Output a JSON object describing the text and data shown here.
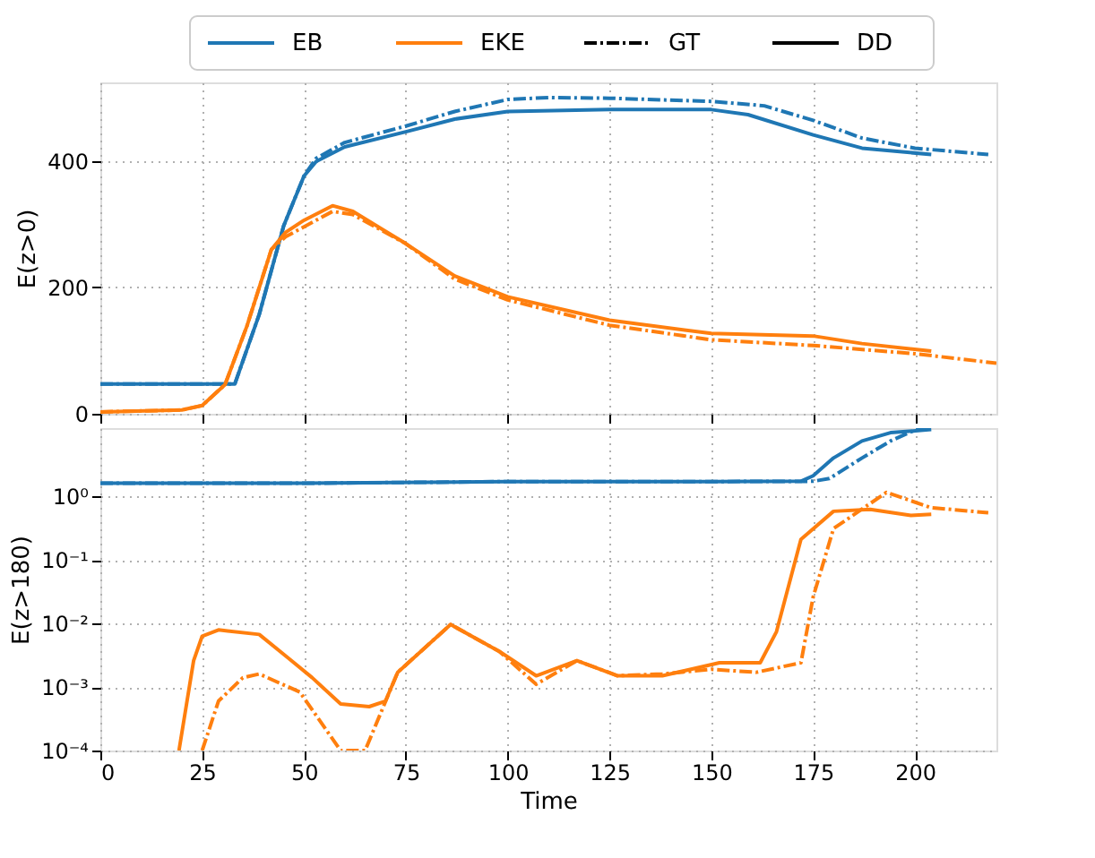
{
  "chart_data": [
    {
      "type": "line",
      "ylabel": "E(z>0)",
      "xlim": [
        0,
        220
      ],
      "xticks": [
        0,
        25,
        50,
        75,
        100,
        125,
        150,
        175,
        200
      ],
      "ylim": [
        0,
        524
      ],
      "yticks": [
        0,
        200,
        400
      ],
      "grid": true,
      "tick_labels": "y",
      "legend": "top",
      "annotations": [
        "GT",
        "DD"
      ],
      "series": [
        {
          "name": "EB",
          "color": "#1f77b4",
          "line_style": "dashdot",
          "x": [
            0,
            20,
            33,
            39,
            45,
            50,
            53,
            60,
            75,
            87,
            100,
            110,
            125,
            150,
            163,
            175,
            187,
            200,
            218
          ],
          "values": [
            47,
            47,
            47,
            157,
            297,
            376,
            404,
            429,
            455,
            478,
            497,
            500,
            499,
            494,
            487,
            464,
            436,
            420,
            410
          ]
        },
        {
          "color": "#1f77b4",
          "line_style": "solid",
          "x": [
            0,
            20,
            33,
            39,
            45,
            50,
            53,
            60,
            75,
            87,
            100,
            125,
            150,
            159,
            175,
            187,
            204
          ],
          "values": [
            47,
            47,
            47,
            157,
            297,
            376,
            399,
            422,
            446,
            466,
            478,
            481,
            481,
            473,
            441,
            420,
            410
          ]
        },
        {
          "name": "EKE",
          "color": "#ff7f0e",
          "line_style": "dashdot",
          "x": [
            0,
            20,
            25,
            30.6,
            36,
            42,
            45.5,
            57,
            62,
            75,
            87,
            100,
            125,
            150,
            175,
            200,
            220
          ],
          "values": [
            3,
            6,
            13,
            46,
            139,
            260,
            280,
            320,
            315,
            269,
            213,
            180,
            140,
            117,
            108,
            95,
            80
          ]
        },
        {
          "color": "#ff7f0e",
          "line_style": "solid",
          "x": [
            0,
            20,
            25,
            30.6,
            36,
            42,
            45.5,
            50,
            57,
            62,
            75,
            87,
            100,
            125,
            150,
            175,
            187,
            204
          ],
          "values": [
            3,
            6,
            13,
            46,
            139,
            260,
            287,
            306,
            329,
            320,
            269,
            218,
            185,
            148,
            127,
            123,
            111,
            99
          ]
        }
      ]
    },
    {
      "type": "line",
      "xlabel": "Time",
      "ylabel": "E(z>180)",
      "log": true,
      "xlim": [
        0,
        220
      ],
      "xticks": [
        0,
        25,
        50,
        75,
        100,
        125,
        150,
        175,
        200
      ],
      "ylim": [
        0.0001,
        11.8
      ],
      "yticks": [
        {
          "value": 0.0001,
          "label": "10⁻⁴"
        },
        {
          "value": 0.001,
          "label": "10⁻³"
        },
        {
          "value": 0.01,
          "label": "10⁻²"
        },
        {
          "value": 0.1,
          "label": "10⁻¹"
        },
        {
          "value": 1,
          "label": "10⁰"
        }
      ],
      "grid": true,
      "series": [
        {
          "color": "#1f77b4",
          "line_style": "dashdot",
          "x": [
            0,
            50,
            100,
            150,
            175,
            179,
            187,
            194,
            200,
            203
          ],
          "values": [
            1.6,
            1.6,
            1.7,
            1.7,
            1.72,
            1.9,
            4,
            7.4,
            11,
            11.5
          ]
        },
        {
          "color": "#1f77b4",
          "line_style": "solid",
          "x": [
            0,
            50,
            100,
            150,
            172,
            175,
            180,
            187,
            194,
            204
          ],
          "values": [
            1.6,
            1.6,
            1.7,
            1.7,
            1.72,
            2.1,
            4,
            7.4,
            10,
            11.2
          ]
        },
        {
          "color": "#ff7f0e",
          "line_style": "dashdot",
          "x": [
            25,
            29,
            35,
            39,
            49,
            59,
            65,
            73,
            86,
            98,
            107,
            117,
            127,
            138,
            150,
            161,
            172,
            175,
            180,
            193,
            204,
            218
          ],
          "values": [
            0.0001,
            0.0006,
            0.0014,
            0.0016,
            0.00083,
            0.0001,
            0.0001,
            0.0017,
            0.0096,
            0.0036,
            0.0011,
            0.0026,
            0.0015,
            0.0016,
            0.0019,
            0.0017,
            0.0024,
            0.026,
            0.31,
            1.15,
            0.66,
            0.55
          ]
        },
        {
          "color": "#ff7f0e",
          "line_style": "solid",
          "x": [
            19.3,
            22.9,
            25,
            29,
            39,
            46,
            52,
            59,
            66,
            70,
            73,
            86,
            98,
            107,
            117,
            127,
            138,
            152,
            162,
            166,
            172,
            180,
            189,
            199,
            204
          ],
          "values": [
            0.0001,
            0.0026,
            0.0063,
            0.0079,
            0.0067,
            0.0029,
            0.0014,
            0.00054,
            0.00049,
            0.0006,
            0.0017,
            0.0096,
            0.0036,
            0.0015,
            0.0026,
            0.0015,
            0.0015,
            0.0024,
            0.0024,
            0.0074,
            0.21,
            0.58,
            0.62,
            0.5,
            0.52
          ]
        }
      ]
    }
  ]
}
